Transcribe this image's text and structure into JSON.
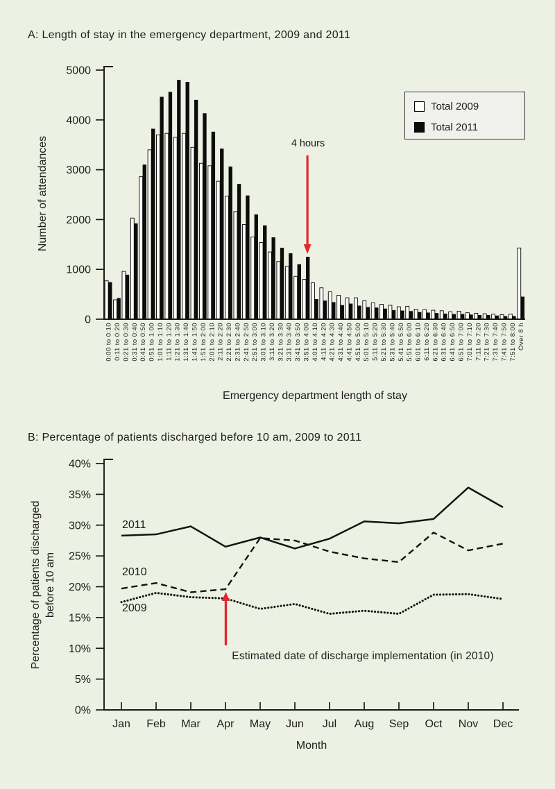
{
  "page": {
    "background": "#ecf1e3",
    "text_color": "#1d1d1b",
    "accent_red": "#e0282d",
    "bar_black": "#0c0c0a",
    "bar_white": "#ffffff"
  },
  "chart_data": [
    {
      "id": "ed-length-of-stay",
      "type": "bar",
      "title": "A: Length of stay in the emergency department, 2009 and 2011",
      "xlabel": "Emergency department length of stay",
      "ylabel": "Number of attendances",
      "ylim": [
        0,
        5000
      ],
      "yticks": [
        0,
        1000,
        2000,
        3000,
        4000,
        5000
      ],
      "grid": false,
      "legend_position": "upper right",
      "categories": [
        "0:00 to 0:10",
        "0:11 to 0:20",
        "0:21 to 0:30",
        "0:31 to 0:40",
        "0:41 to 0:50",
        "0:51 to 1:00",
        "1:01 to 1:10",
        "1:11 to 1:20",
        "1:21 to 1:30",
        "1:31 to 1:40",
        "1:41 to 1:50",
        "1:51 to 2:00",
        "2:01 to 2:10",
        "2:11 to 2:20",
        "2:21 to 2:30",
        "2:31 to 2:40",
        "2:41 to 2:50",
        "2:51 to 3:00",
        "3:01 to 3:10",
        "3:11 to 3:20",
        "3:21 to 3:30",
        "3:31 to 3:40",
        "3:41 to 3:50",
        "3:51 to 4:00",
        "4:01 to 4:10",
        "4:11 to 4:20",
        "4:21 to 4:30",
        "4:31 to 4:40",
        "4:41 to 4:50",
        "4:51 to 5:00",
        "5:01 to 5:10",
        "5:11 to 5:20",
        "5:21 to 5:30",
        "5:31 to 5:40",
        "5:41 to 5:50",
        "5:51 to 6:00",
        "6:01 to 6:10",
        "6:11 to 6:20",
        "6:21 to 6:30",
        "6:31 to 6:40",
        "6:41 to 6:50",
        "6:51 to 7:00",
        "7:01 to 7:10",
        "7:11 to 7:20",
        "7:21 to 7:30",
        "7:31 to 7:40",
        "7:41 to 7:50",
        "7:51 to 8:00",
        "Over 8 h"
      ],
      "series": [
        {
          "name": "Total 2009",
          "fill": "#ffffff",
          "values": [
            770,
            390,
            960,
            2030,
            2860,
            3400,
            3700,
            3730,
            3650,
            3730,
            3450,
            3130,
            3080,
            2770,
            2470,
            2160,
            1900,
            1650,
            1540,
            1350,
            1160,
            1060,
            860,
            800,
            730,
            630,
            550,
            480,
            430,
            430,
            370,
            330,
            300,
            280,
            250,
            260,
            200,
            190,
            180,
            170,
            150,
            160,
            130,
            120,
            110,
            100,
            90,
            100,
            1430
          ]
        },
        {
          "name": "Total 2011",
          "fill": "#0c0c0a",
          "values": [
            740,
            420,
            890,
            1920,
            3100,
            3820,
            4460,
            4560,
            4800,
            4760,
            4400,
            4130,
            3760,
            3420,
            3060,
            2710,
            2480,
            2100,
            1880,
            1640,
            1430,
            1320,
            1100,
            1250,
            400,
            370,
            340,
            280,
            310,
            270,
            240,
            230,
            210,
            180,
            170,
            160,
            140,
            130,
            120,
            110,
            100,
            100,
            90,
            80,
            80,
            70,
            60,
            60,
            450
          ]
        }
      ],
      "annotation": {
        "text": "4 hours",
        "category": "3:51 to 4:00",
        "arrow_color": "#e0282d"
      }
    },
    {
      "id": "discharged-before-10am",
      "type": "line",
      "title": "B: Percentage of patients discharged before 10 am, 2009 to 2011",
      "xlabel": "Month",
      "ylabel": "Percentage of patients discharged before 10 am",
      "ylabel_lines": [
        "Percentage of patients discharged",
        "before 10 am"
      ],
      "ylim": [
        0,
        40
      ],
      "ytick_step": 5,
      "ytick_suffix": "%",
      "grid": false,
      "categories": [
        "Jan",
        "Feb",
        "Mar",
        "Apr",
        "May",
        "Jun",
        "Jul",
        "Aug",
        "Sep",
        "Oct",
        "Nov",
        "Dec"
      ],
      "series": [
        {
          "name": "2011",
          "style": "solid",
          "values": [
            28.3,
            28.5,
            29.8,
            26.5,
            28.0,
            26.2,
            27.8,
            30.6,
            30.3,
            31.0,
            36.1,
            32.9
          ]
        },
        {
          "name": "2010",
          "style": "dashed",
          "values": [
            19.7,
            20.6,
            19.1,
            19.6,
            27.9,
            27.5,
            25.7,
            24.6,
            24.0,
            28.8,
            25.9,
            27.0
          ]
        },
        {
          "name": "2009",
          "style": "dotted",
          "values": [
            17.5,
            19.0,
            18.3,
            18.1,
            16.4,
            17.2,
            15.6,
            16.1,
            15.6,
            18.7,
            18.8,
            18.0
          ]
        }
      ],
      "annotation": {
        "text": "Estimated date of discharge implementation (in 2010)",
        "month": "Apr",
        "arrow_color": "#e0282d"
      }
    }
  ]
}
